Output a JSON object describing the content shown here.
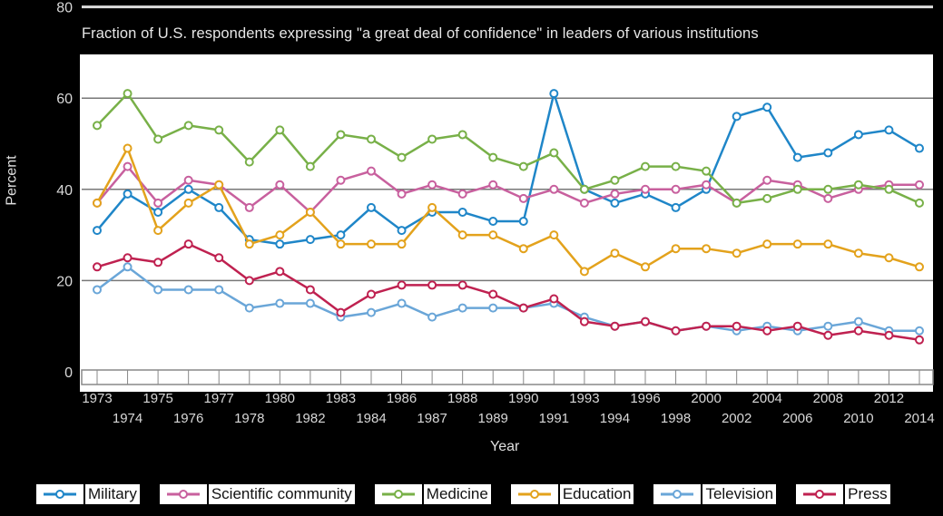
{
  "chart_data": {
    "type": "line",
    "title": "Fraction of U.S. respondents  expressing  \"a great deal of confidence\" in leaders of various institutions",
    "xlabel": "Year",
    "ylabel": "Percent",
    "ylim": [
      0,
      80
    ],
    "yticks": [
      0,
      20,
      40,
      60,
      80
    ],
    "grid": true,
    "legend_position": "bottom",
    "x": [
      "1973",
      "1974",
      "1975",
      "1976",
      "1977",
      "1978",
      "1980",
      "1982",
      "1983",
      "1984",
      "1986",
      "1987",
      "1988",
      "1989",
      "1990",
      "1991",
      "1993",
      "1994",
      "1996",
      "1998",
      "2000",
      "2002",
      "2004",
      "2006",
      "2008",
      "2010",
      "2012",
      "2014"
    ],
    "series": [
      {
        "name": "Military",
        "color": "#1f86c8",
        "values": [
          31,
          39,
          35,
          40,
          36,
          29,
          28,
          29,
          30,
          36,
          31,
          35,
          35,
          33,
          33,
          61,
          40,
          37,
          39,
          36,
          40,
          56,
          58,
          47,
          48,
          52,
          53,
          49
        ]
      },
      {
        "name": "Scientific community",
        "color": "#c8609e",
        "values": [
          37,
          45,
          37,
          42,
          41,
          36,
          41,
          35,
          42,
          44,
          39,
          41,
          39,
          41,
          38,
          40,
          37,
          39,
          40,
          40,
          41,
          37,
          42,
          41,
          38,
          40,
          41,
          41
        ]
      },
      {
        "name": "Medicine",
        "color": "#78b048",
        "values": [
          54,
          61,
          51,
          54,
          53,
          46,
          53,
          45,
          52,
          51,
          47,
          51,
          52,
          47,
          45,
          48,
          40,
          42,
          45,
          45,
          44,
          37,
          38,
          40,
          40,
          41,
          40,
          37
        ]
      },
      {
        "name": "Education",
        "color": "#e3a21c",
        "values": [
          37,
          49,
          31,
          37,
          41,
          28,
          30,
          35,
          28,
          28,
          28,
          36,
          30,
          30,
          27,
          30,
          22,
          26,
          23,
          27,
          27,
          26,
          28,
          28,
          28,
          26,
          25,
          23
        ]
      },
      {
        "name": "Television",
        "color": "#6aa6d8",
        "values": [
          18,
          23,
          18,
          18,
          18,
          14,
          15,
          15,
          12,
          13,
          15,
          12,
          14,
          14,
          14,
          15,
          12,
          10,
          11,
          9,
          10,
          9,
          10,
          9,
          10,
          11,
          9,
          9
        ]
      },
      {
        "name": "Press",
        "color": "#bf2150",
        "values": [
          23,
          25,
          24,
          28,
          25,
          20,
          22,
          18,
          13,
          17,
          19,
          19,
          19,
          17,
          14,
          16,
          11,
          10,
          11,
          9,
          10,
          10,
          9,
          10,
          8,
          9,
          8,
          7
        ]
      }
    ]
  },
  "labels": {
    "title": "Fraction of U.S. respondents  expressing  \"a great deal of confidence\" in leaders of various institutions",
    "xlabel": "Year",
    "ylabel": "Percent"
  }
}
